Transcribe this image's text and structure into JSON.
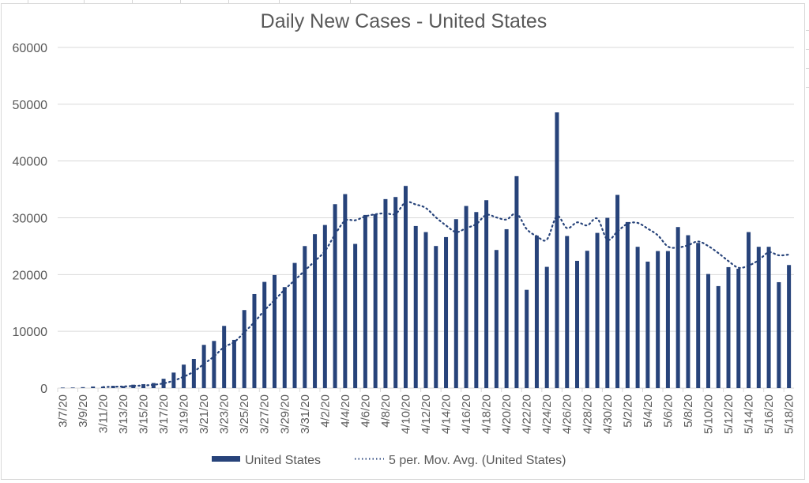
{
  "chart_data": {
    "type": "bar",
    "title": "Daily New Cases - United States",
    "xlabel": "",
    "ylabel": "",
    "ylim": [
      0,
      60000
    ],
    "yticks": [
      0,
      10000,
      20000,
      30000,
      40000,
      50000,
      60000
    ],
    "ytick_labels": [
      "0",
      "10000",
      "20000",
      "30000",
      "40000",
      "50000",
      "60000"
    ],
    "grid": true,
    "legend_position": "bottom",
    "bar_color": "#27437a",
    "categories": [
      "3/7/20",
      "3/8/20",
      "3/9/20",
      "3/10/20",
      "3/11/20",
      "3/12/20",
      "3/13/20",
      "3/14/20",
      "3/15/20",
      "3/16/20",
      "3/17/20",
      "3/18/20",
      "3/19/20",
      "3/20/20",
      "3/21/20",
      "3/22/20",
      "3/23/20",
      "3/24/20",
      "3/25/20",
      "3/26/20",
      "3/27/20",
      "3/28/20",
      "3/29/20",
      "3/30/20",
      "3/31/20",
      "4/1/20",
      "4/2/20",
      "4/3/20",
      "4/4/20",
      "4/5/20",
      "4/6/20",
      "4/7/20",
      "4/8/20",
      "4/9/20",
      "4/10/20",
      "4/11/20",
      "4/12/20",
      "4/13/20",
      "4/14/20",
      "4/15/20",
      "4/16/20",
      "4/17/20",
      "4/18/20",
      "4/19/20",
      "4/20/20",
      "4/21/20",
      "4/22/20",
      "4/23/20",
      "4/24/20",
      "4/25/20",
      "4/26/20",
      "4/27/20",
      "4/28/20",
      "4/29/20",
      "4/30/20",
      "5/1/20",
      "5/2/20",
      "5/3/20",
      "5/4/20",
      "5/5/20",
      "5/6/20",
      "5/7/20",
      "5/8/20",
      "5/9/20",
      "5/10/20",
      "5/11/20",
      "5/12/20",
      "5/13/20",
      "5/14/20",
      "5/15/20",
      "5/16/20",
      "5/17/20",
      "5/18/20"
    ],
    "xtick_labels": [
      "3/7/20",
      "3/9/20",
      "3/11/20",
      "3/13/20",
      "3/15/20",
      "3/17/20",
      "3/19/20",
      "3/21/20",
      "3/23/20",
      "3/25/20",
      "3/27/20",
      "3/29/20",
      "3/31/20",
      "4/2/20",
      "4/4/20",
      "4/6/20",
      "4/8/20",
      "4/10/20",
      "4/12/20",
      "4/14/20",
      "4/16/20",
      "4/18/20",
      "4/20/20",
      "4/22/20",
      "4/24/20",
      "4/26/20",
      "4/28/20",
      "4/30/20",
      "5/2/20",
      "5/4/20",
      "5/6/20",
      "5/8/20",
      "5/10/20",
      "5/12/20",
      "5/14/20",
      "5/16/20",
      "5/18/20"
    ],
    "series": [
      {
        "name": "United States",
        "type": "bar",
        "values": [
          100,
          110,
          170,
          290,
          270,
          400,
          360,
          600,
          700,
          900,
          1650,
          2740,
          4140,
          5150,
          7620,
          8310,
          10960,
          8500,
          13750,
          16570,
          18710,
          19920,
          17790,
          22050,
          25020,
          27120,
          28730,
          32400,
          34170,
          25400,
          30500,
          30640,
          33290,
          33660,
          35610,
          28550,
          27480,
          25030,
          26600,
          29760,
          32080,
          31010,
          33100,
          24330,
          27990,
          37330,
          17310,
          26840,
          21360,
          48560,
          26790,
          22420,
          24190,
          27340,
          29990,
          34030,
          29250,
          24890,
          22280,
          24140,
          24140,
          28370,
          26930,
          25580,
          20100,
          17970,
          21310,
          21030,
          27480,
          24890,
          24890,
          18660,
          21680
        ]
      },
      {
        "name": "5 per. Mov. Avg. (United States)",
        "type": "line",
        "style": "dotted",
        "period": 5,
        "source": "United States"
      }
    ]
  }
}
